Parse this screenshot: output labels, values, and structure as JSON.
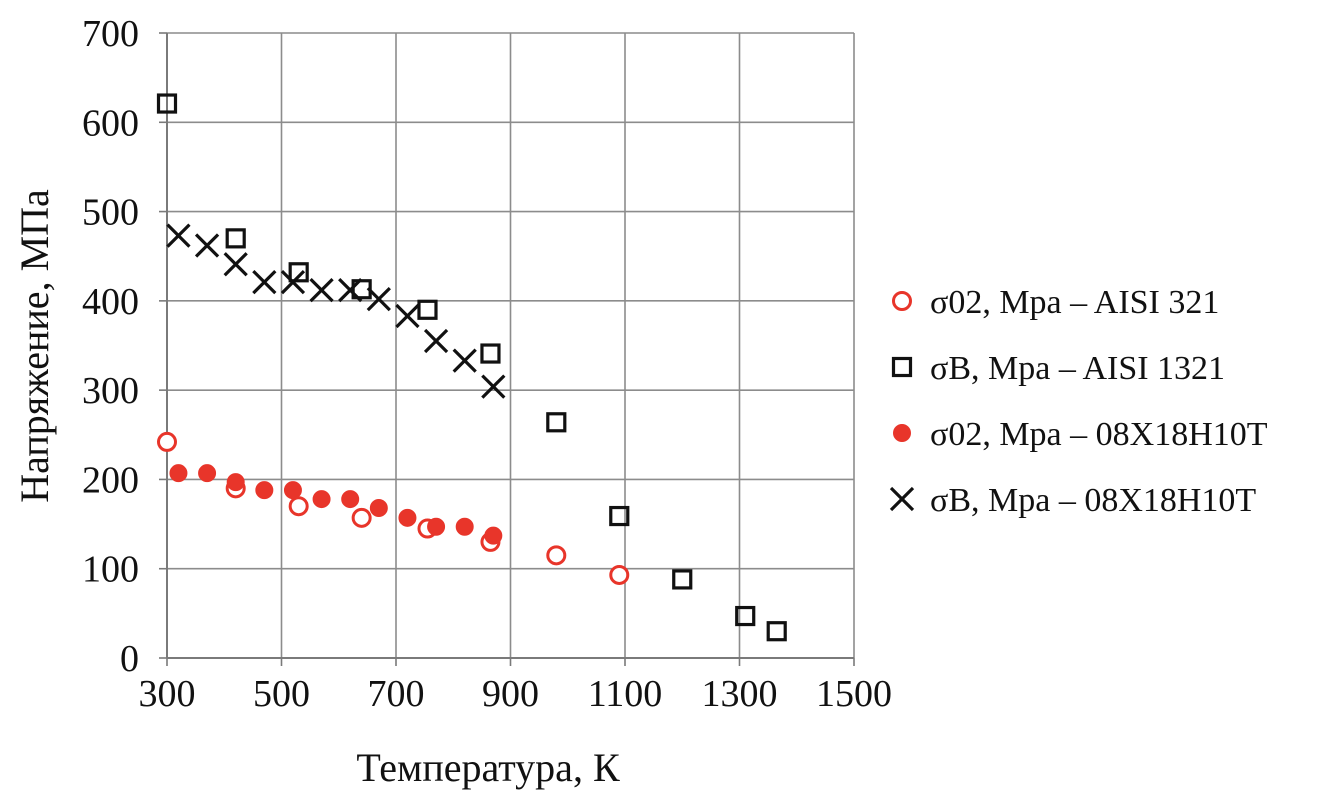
{
  "chart_data": {
    "type": "scatter",
    "title": "",
    "xlabel": "Температура, К",
    "ylabel": "Напряжение, МПа",
    "xlim": [
      300,
      1500
    ],
    "ylim": [
      0,
      700
    ],
    "x_ticks": [
      "300",
      "500",
      "700",
      "900",
      "1100",
      "1300",
      "1500"
    ],
    "y_ticks": [
      "0",
      "100",
      "200",
      "300",
      "400",
      "500",
      "600",
      "700"
    ],
    "x_tick_values": [
      300,
      500,
      700,
      900,
      1100,
      1300,
      1500
    ],
    "y_tick_values": [
      0,
      100,
      200,
      300,
      400,
      500,
      600,
      700
    ],
    "grid": true,
    "legend_position": "right",
    "series": [
      {
        "name": "σ02, Mpa – AISI 321",
        "marker": "open-circle",
        "color": "#e8352a",
        "points": [
          [
            300,
            242
          ],
          [
            420,
            190
          ],
          [
            530,
            170
          ],
          [
            640,
            157
          ],
          [
            755,
            145
          ],
          [
            865,
            130
          ],
          [
            980,
            115
          ],
          [
            1090,
            93
          ]
        ]
      },
      {
        "name": "σB, Mpa – AISI 1321",
        "marker": "open-square",
        "color": "#111111",
        "points": [
          [
            300,
            621
          ],
          [
            420,
            470
          ],
          [
            530,
            432
          ],
          [
            640,
            413
          ],
          [
            755,
            390
          ],
          [
            865,
            341
          ],
          [
            980,
            264
          ],
          [
            1090,
            159
          ],
          [
            1200,
            88
          ],
          [
            1310,
            47
          ],
          [
            1365,
            30
          ]
        ]
      },
      {
        "name": "σ02, Mpa – 08X18H10T",
        "marker": "filled-circle",
        "color": "#e8352a",
        "points": [
          [
            320,
            207
          ],
          [
            370,
            207
          ],
          [
            420,
            197
          ],
          [
            470,
            188
          ],
          [
            520,
            188
          ],
          [
            570,
            178
          ],
          [
            620,
            178
          ],
          [
            670,
            168
          ],
          [
            720,
            157
          ],
          [
            770,
            147
          ],
          [
            820,
            147
          ],
          [
            870,
            137
          ]
        ]
      },
      {
        "name": "σB, Mpa – 08X18H10T",
        "marker": "x",
        "color": "#111111",
        "points": [
          [
            320,
            473
          ],
          [
            370,
            462
          ],
          [
            420,
            441
          ],
          [
            470,
            421
          ],
          [
            520,
            421
          ],
          [
            570,
            412
          ],
          [
            620,
            412
          ],
          [
            670,
            402
          ],
          [
            720,
            383
          ],
          [
            770,
            355
          ],
          [
            820,
            333
          ],
          [
            870,
            304
          ]
        ]
      }
    ]
  }
}
